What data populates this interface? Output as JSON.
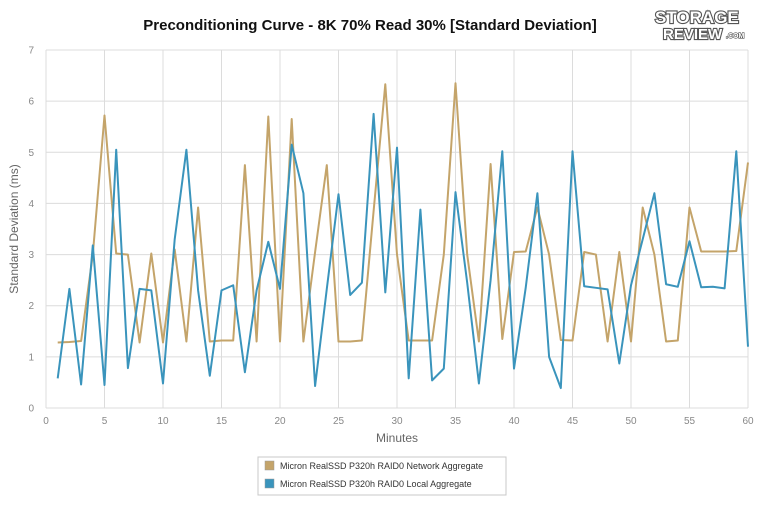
{
  "logo": {
    "line1": "STORAGE",
    "line2": "REVIEW",
    "suffix": ".COM"
  },
  "chart_data": {
    "type": "line",
    "title": "Preconditioning Curve - 8K 70% Read 30% [Standard Deviation]",
    "xlabel": "Minutes",
    "ylabel": "Standard Deviation (ms)",
    "xlim": [
      0,
      60
    ],
    "ylim": [
      0,
      7
    ],
    "xticks": [
      0,
      5,
      10,
      15,
      20,
      25,
      30,
      35,
      40,
      45,
      50,
      55,
      60
    ],
    "yticks": [
      0,
      1,
      2,
      3,
      4,
      5,
      6,
      7
    ],
    "grid": true,
    "legend_position": "bottom-center",
    "x": [
      1,
      2,
      3,
      4,
      5,
      6,
      7,
      8,
      9,
      10,
      11,
      12,
      13,
      14,
      15,
      16,
      17,
      18,
      19,
      20,
      21,
      22,
      23,
      24,
      25,
      26,
      27,
      28,
      29,
      30,
      31,
      32,
      33,
      34,
      35,
      36,
      37,
      38,
      39,
      40,
      41,
      42,
      43,
      44,
      45,
      46,
      47,
      48,
      49,
      50,
      51,
      52,
      53,
      54,
      55,
      56,
      57,
      58,
      59,
      60
    ],
    "series": [
      {
        "name": "Micron RealSSD P320h RAID0 Network Aggregate",
        "color": "#c4a46a",
        "values": [
          1.28,
          1.29,
          1.31,
          3.0,
          5.72,
          3.02,
          3.0,
          1.28,
          3.02,
          1.28,
          3.1,
          1.3,
          3.92,
          1.3,
          1.32,
          1.32,
          4.75,
          1.3,
          5.7,
          1.3,
          5.65,
          1.3,
          3.05,
          4.75,
          1.3,
          1.3,
          1.32,
          3.85,
          6.33,
          3.0,
          1.32,
          1.32,
          1.32,
          3.0,
          6.35,
          3.0,
          1.3,
          4.77,
          1.35,
          3.05,
          3.06,
          3.92,
          3.0,
          1.33,
          1.32,
          3.05,
          3.0,
          1.3,
          3.05,
          1.3,
          3.92,
          3.0,
          1.3,
          1.32,
          3.92,
          3.06,
          3.06,
          3.06,
          3.07,
          4.8
        ]
      },
      {
        "name": "Micron RealSSD P320h RAID0 Local Aggregate",
        "color": "#3a94bc",
        "values": [
          0.58,
          2.33,
          0.46,
          3.18,
          0.45,
          5.05,
          0.78,
          2.33,
          2.3,
          0.48,
          3.3,
          5.05,
          2.3,
          0.63,
          2.3,
          2.4,
          0.7,
          2.3,
          3.25,
          2.33,
          5.15,
          4.2,
          0.43,
          2.33,
          4.18,
          2.21,
          2.45,
          5.75,
          2.26,
          5.09,
          0.58,
          3.88,
          0.54,
          0.77,
          4.22,
          2.45,
          0.48,
          2.5,
          5.02,
          0.77,
          2.35,
          4.2,
          1.0,
          0.39,
          5.02,
          2.38,
          2.35,
          2.32,
          0.87,
          2.4,
          3.3,
          4.2,
          2.42,
          2.37,
          3.26,
          2.36,
          2.37,
          2.34,
          5.02,
          1.2
        ]
      }
    ]
  }
}
